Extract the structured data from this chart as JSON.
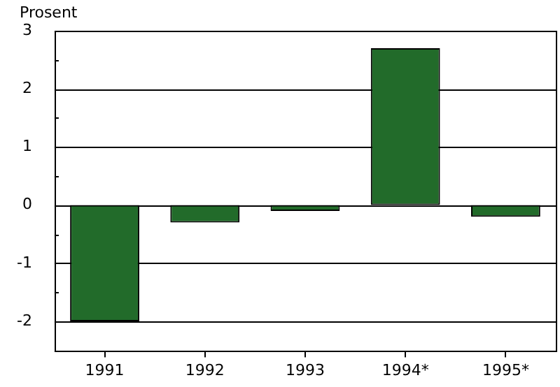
{
  "chart_data": {
    "type": "bar",
    "ylabel": "Prosent",
    "categories": [
      "1991",
      "1992",
      "1993",
      "1994*",
      "1995*"
    ],
    "values": [
      -2.0,
      -0.3,
      -0.1,
      2.7,
      -0.2
    ],
    "color": "#226b2a",
    "ylim": [
      -2.5,
      3
    ],
    "yticks": [
      {
        "value": -2.5,
        "label": null
      },
      -2,
      {
        "value": -1.5,
        "label": null
      },
      -1,
      {
        "value": -0.5,
        "label": null
      },
      0,
      {
        "value": 0.5,
        "label": null
      },
      1,
      {
        "value": 1.5,
        "label": null
      },
      2,
      {
        "value": 2.5,
        "label": null
      },
      3
    ],
    "grid": "y"
  }
}
